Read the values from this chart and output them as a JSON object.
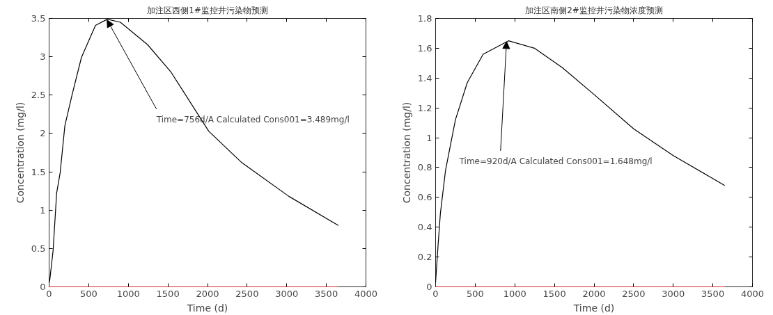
{
  "chart_data": [
    {
      "type": "line",
      "title": "加注区西侧1#监控井污染物预测",
      "xlabel": "Time (d)",
      "ylabel": "Concentration (mg/l)",
      "xlim": [
        0,
        4000
      ],
      "xticks": [
        0,
        500,
        1000,
        1500,
        2000,
        2500,
        3000,
        3500,
        4000
      ],
      "ylim": [
        0,
        3.5
      ],
      "yticks": [
        0,
        0.5,
        1,
        1.5,
        2,
        2.5,
        3,
        3.5
      ],
      "grid": false,
      "annotations": [
        {
          "text": "Time=756d/A Calculated Cons001=3.489mg/l",
          "x": 756,
          "y": 3.49
        }
      ],
      "series": [
        {
          "color": "#000000",
          "x": [
            0,
            10,
            51,
            95,
            140,
            199,
            289,
            408,
            497,
            586,
            735,
            900,
            1241,
            1539,
            2015,
            2432,
            3027,
            3652
          ],
          "values": [
            0.05,
            0.1,
            0.48,
            1.22,
            1.49,
            2.1,
            2.5,
            2.99,
            3.2,
            3.41,
            3.49,
            3.45,
            3.16,
            2.8,
            2.03,
            1.62,
            1.18,
            0.8
          ]
        },
        {
          "color": "#d62728",
          "x": [
            0,
            3652
          ],
          "values": [
            0,
            0
          ]
        }
      ]
    },
    {
      "type": "line",
      "title": "加注区南侧2#监控井污染物浓度预测",
      "xlabel": "Time (d)",
      "ylabel": "Concentration (mg/l)",
      "xlim": [
        0,
        4000
      ],
      "xticks": [
        0,
        500,
        1000,
        1500,
        2000,
        2500,
        3000,
        3500,
        4000
      ],
      "ylim": [
        0,
        1.8
      ],
      "yticks": [
        0,
        0.2,
        0.4,
        0.6,
        0.8,
        1,
        1.2,
        1.4,
        1.6,
        1.8
      ],
      "grid": false,
      "annotations": [
        {
          "text": "Time=920d/A Calculated Cons001=1.648mg/l",
          "x": 920,
          "y": 1.65
        }
      ],
      "series": [
        {
          "color": "#000000",
          "x": [
            0,
            30,
            60,
            125,
            250,
            400,
            600,
            920,
            1250,
            1600,
            2000,
            2500,
            3000,
            3650
          ],
          "values": [
            0.03,
            0.27,
            0.49,
            0.78,
            1.12,
            1.37,
            1.56,
            1.65,
            1.6,
            1.47,
            1.29,
            1.06,
            0.88,
            0.68
          ]
        },
        {
          "color": "#d62728",
          "x": [
            0,
            3650
          ],
          "values": [
            0,
            0
          ]
        }
      ]
    }
  ]
}
